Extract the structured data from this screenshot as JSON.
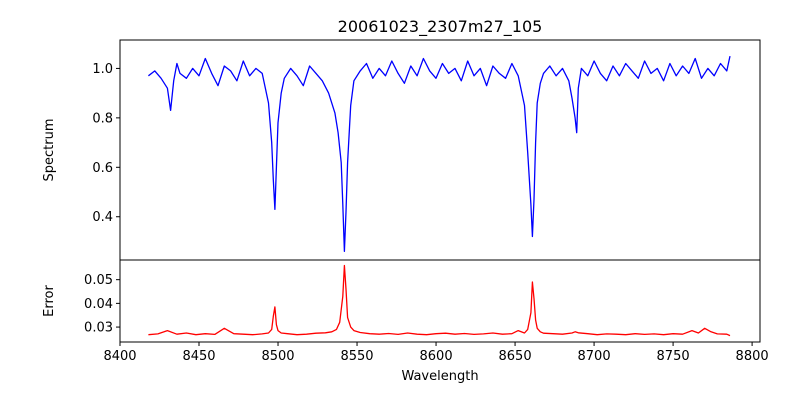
{
  "chart_data": {
    "title": "20061023_2307m27_105",
    "xlabel": "Wavelength",
    "xlim": [
      8400,
      8805
    ],
    "xticks": [
      8400,
      8450,
      8500,
      8550,
      8600,
      8650,
      8700,
      8750,
      8800
    ],
    "panels": [
      {
        "name": "spectrum",
        "type": "line",
        "ylabel": "Spectrum",
        "ylim": [
          0.225,
          1.115
        ],
        "yticks": [
          0.4,
          0.6,
          0.8,
          1.0
        ],
        "ytick_labels": [
          "0.4",
          "0.6",
          "0.8",
          "1.0"
        ],
        "color": "#0000ff",
        "x": [
          8418,
          8422,
          8426,
          8430,
          8432,
          8434,
          8436,
          8438,
          8442,
          8446,
          8450,
          8454,
          8458,
          8462,
          8466,
          8470,
          8474,
          8478,
          8482,
          8486,
          8490,
          8494,
          8496,
          8497,
          8498,
          8499,
          8500,
          8502,
          8504,
          8508,
          8512,
          8516,
          8520,
          8524,
          8528,
          8532,
          8536,
          8538,
          8540,
          8541,
          8542,
          8543,
          8544,
          8546,
          8548,
          8552,
          8556,
          8560,
          8564,
          8568,
          8572,
          8576,
          8580,
          8584,
          8588,
          8592,
          8596,
          8600,
          8604,
          8608,
          8612,
          8616,
          8620,
          8624,
          8628,
          8632,
          8636,
          8640,
          8644,
          8648,
          8652,
          8656,
          8658,
          8660,
          8661,
          8662,
          8663,
          8664,
          8666,
          8668,
          8672,
          8676,
          8680,
          8684,
          8686,
          8688,
          8689,
          8690,
          8692,
          8696,
          8700,
          8704,
          8708,
          8712,
          8716,
          8720,
          8724,
          8728,
          8732,
          8736,
          8740,
          8744,
          8748,
          8752,
          8756,
          8760,
          8764,
          8768,
          8772,
          8776,
          8780,
          8784,
          8786
        ],
        "y": [
          0.97,
          0.99,
          0.96,
          0.92,
          0.83,
          0.95,
          1.02,
          0.98,
          0.96,
          1.0,
          0.97,
          1.04,
          0.98,
          0.93,
          1.01,
          0.99,
          0.95,
          1.03,
          0.97,
          1.0,
          0.98,
          0.86,
          0.7,
          0.55,
          0.43,
          0.6,
          0.78,
          0.9,
          0.96,
          1.0,
          0.97,
          0.93,
          1.01,
          0.98,
          0.95,
          0.9,
          0.82,
          0.74,
          0.62,
          0.45,
          0.26,
          0.42,
          0.62,
          0.85,
          0.95,
          0.99,
          1.02,
          0.96,
          1.0,
          0.97,
          1.03,
          0.98,
          0.94,
          1.01,
          0.97,
          1.04,
          0.99,
          0.96,
          1.02,
          0.98,
          1.0,
          0.95,
          1.03,
          0.97,
          1.0,
          0.93,
          1.01,
          0.98,
          0.96,
          1.02,
          0.97,
          0.85,
          0.66,
          0.45,
          0.32,
          0.47,
          0.7,
          0.86,
          0.94,
          0.98,
          1.01,
          0.97,
          1.0,
          0.95,
          0.88,
          0.8,
          0.74,
          0.92,
          1.0,
          0.97,
          1.03,
          0.98,
          0.95,
          1.01,
          0.97,
          1.02,
          0.99,
          0.96,
          1.03,
          0.98,
          1.0,
          0.95,
          1.02,
          0.97,
          1.01,
          0.98,
          1.04,
          0.96,
          1.0,
          0.97,
          1.02,
          0.99,
          1.05
        ]
      },
      {
        "name": "error",
        "type": "line",
        "ylabel": "Error",
        "ylim": [
          0.0237,
          0.0583
        ],
        "yticks": [
          0.03,
          0.04,
          0.05
        ],
        "ytick_labels": [
          "0.03",
          "0.04",
          "0.05"
        ],
        "color": "#ff0000",
        "x": [
          8418,
          8424,
          8430,
          8436,
          8442,
          8448,
          8454,
          8460,
          8466,
          8472,
          8478,
          8484,
          8490,
          8494,
          8496,
          8497,
          8498,
          8499,
          8500,
          8502,
          8506,
          8512,
          8518,
          8524,
          8530,
          8534,
          8537,
          8539,
          8541,
          8542,
          8543,
          8544,
          8546,
          8548,
          8552,
          8558,
          8564,
          8570,
          8576,
          8582,
          8588,
          8594,
          8600,
          8606,
          8612,
          8618,
          8624,
          8630,
          8636,
          8642,
          8648,
          8652,
          8656,
          8658,
          8660,
          8661,
          8662,
          8663,
          8664,
          8666,
          8668,
          8674,
          8680,
          8686,
          8688,
          8690,
          8696,
          8702,
          8708,
          8714,
          8720,
          8726,
          8732,
          8738,
          8744,
          8750,
          8756,
          8762,
          8766,
          8770,
          8774,
          8778,
          8784,
          8786
        ],
        "y": [
          0.0268,
          0.0271,
          0.0285,
          0.027,
          0.0275,
          0.0268,
          0.0272,
          0.0269,
          0.0295,
          0.0272,
          0.027,
          0.0268,
          0.0271,
          0.0275,
          0.029,
          0.0345,
          0.0385,
          0.031,
          0.0285,
          0.0275,
          0.0272,
          0.0268,
          0.027,
          0.0274,
          0.0276,
          0.028,
          0.029,
          0.032,
          0.043,
          0.056,
          0.046,
          0.034,
          0.03,
          0.0285,
          0.0277,
          0.0272,
          0.027,
          0.0273,
          0.0269,
          0.0275,
          0.027,
          0.0268,
          0.0272,
          0.0274,
          0.027,
          0.0273,
          0.0269,
          0.0271,
          0.0275,
          0.027,
          0.0272,
          0.0285,
          0.0275,
          0.029,
          0.036,
          0.049,
          0.042,
          0.033,
          0.0295,
          0.028,
          0.0274,
          0.0272,
          0.027,
          0.0275,
          0.028,
          0.0276,
          0.0272,
          0.0268,
          0.0271,
          0.027,
          0.0268,
          0.0272,
          0.0269,
          0.0271,
          0.0268,
          0.0272,
          0.027,
          0.0285,
          0.0275,
          0.0295,
          0.028,
          0.0271,
          0.027,
          0.0264
        ]
      }
    ]
  }
}
